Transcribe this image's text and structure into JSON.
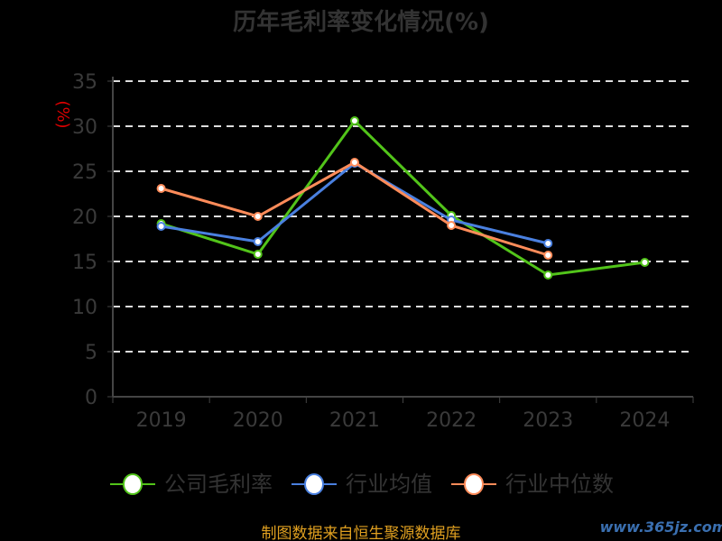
{
  "chart_data": {
    "type": "line",
    "title": "历年毛利率变化情况(%)",
    "ylabel": "(%)",
    "xlabel": "",
    "categories": [
      "2019",
      "2020",
      "2021",
      "2022",
      "2023",
      "2024"
    ],
    "ylim": [
      0,
      35
    ],
    "yticks": [
      "0",
      "5",
      "10",
      "15",
      "20",
      "25",
      "30",
      "35"
    ],
    "grid": true,
    "legend_position": "bottom",
    "series": [
      {
        "name": "公司毛利率",
        "color": "#52c41a",
        "values": [
          19.2,
          15.8,
          30.6,
          20.1,
          13.5,
          14.9
        ]
      },
      {
        "name": "行业均值",
        "color": "#4a80e0",
        "values": [
          18.9,
          17.2,
          25.9,
          19.6,
          17.0,
          null
        ]
      },
      {
        "name": "行业中位数",
        "color": "#ff8c5a",
        "values": [
          23.1,
          20.0,
          26.0,
          19.0,
          15.7,
          null
        ]
      }
    ]
  },
  "footer": {
    "source": "制图数据来自恒生聚源数据库",
    "watermark": "www.365jz.com"
  }
}
